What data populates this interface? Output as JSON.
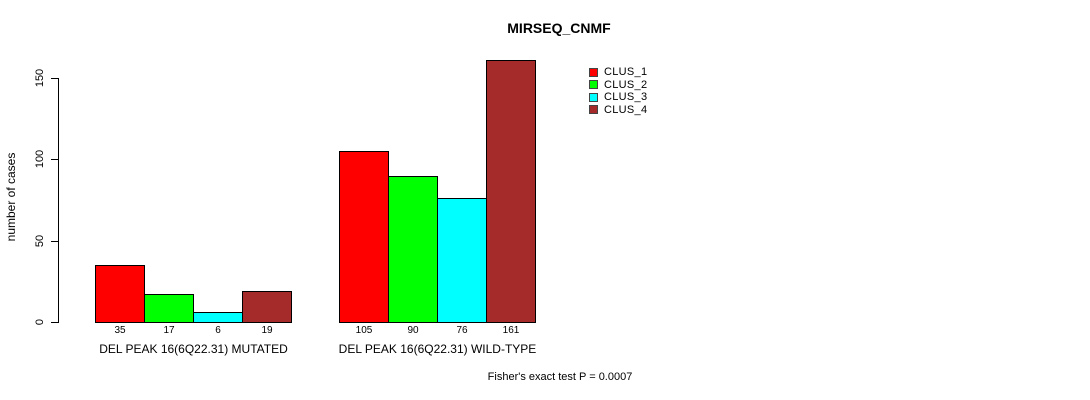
{
  "chart_data": {
    "type": "bar",
    "title": "MIRSEQ_CNMF",
    "ylabel": "number of cases",
    "annotation": "Fisher's exact test P = 0.0007",
    "categories": [
      "DEL PEAK 16(6Q22.31) MUTATED",
      "DEL PEAK 16(6Q22.31) WILD-TYPE"
    ],
    "series": [
      {
        "name": "CLUS_1",
        "color": "#FF0000",
        "values": [
          35,
          105
        ]
      },
      {
        "name": "CLUS_2",
        "color": "#00FF00",
        "values": [
          17,
          90
        ]
      },
      {
        "name": "CLUS_3",
        "color": "#00FFFF",
        "values": [
          6,
          76
        ]
      },
      {
        "name": "CLUS_4",
        "color": "#A52A2A",
        "values": [
          19,
          161
        ]
      }
    ],
    "yticks": [
      0,
      50,
      100,
      150
    ],
    "ylim": [
      0,
      150
    ],
    "bar_value_labels": true,
    "grid": false,
    "legend_position": "top-right",
    "background_color": "#FFFFFF",
    "axis_color": "#000000"
  }
}
